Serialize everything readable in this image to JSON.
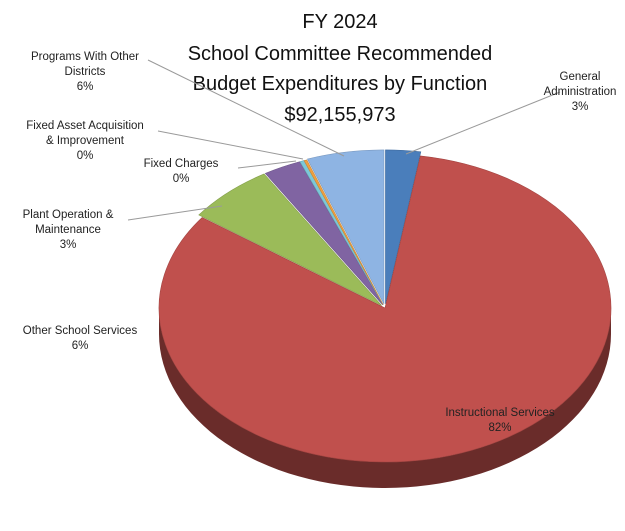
{
  "chart_data": {
    "type": "pie",
    "title_lines": [
      "FY 2024",
      "School Committee Recommended",
      "Budget Expenditures by Function",
      "$92,155,973"
    ],
    "slices": [
      {
        "label_lines": [
          "General",
          "Administration"
        ],
        "pct_label": "3%",
        "value": 2.5,
        "color": "#4a7ebb"
      },
      {
        "label_lines": [
          "Instructional Services"
        ],
        "pct_label": "82%",
        "value": 82.5,
        "color": "#c0504d"
      },
      {
        "label_lines": [
          "Other School Services"
        ],
        "pct_label": "6%",
        "value": 6.3,
        "color": "#9bbb59"
      },
      {
        "label_lines": [
          "Plant Operation &",
          "Maintenance"
        ],
        "pct_label": "3%",
        "value": 2.7,
        "color": "#8064a2"
      },
      {
        "label_lines": [
          "Fixed Charges"
        ],
        "pct_label": "0%",
        "value": 0.3,
        "color": "#7cc8d8"
      },
      {
        "label_lines": [
          "Fixed Asset Acquisition",
          "& Improvement"
        ],
        "pct_label": "0%",
        "value": 0.2,
        "color": "#f0a040"
      },
      {
        "label_lines": [
          "Programs With Other",
          "Districts"
        ],
        "pct_label": "6%",
        "value": 5.5,
        "color": "#8eb4e3"
      }
    ],
    "style": "3d-exploded-perspective"
  }
}
